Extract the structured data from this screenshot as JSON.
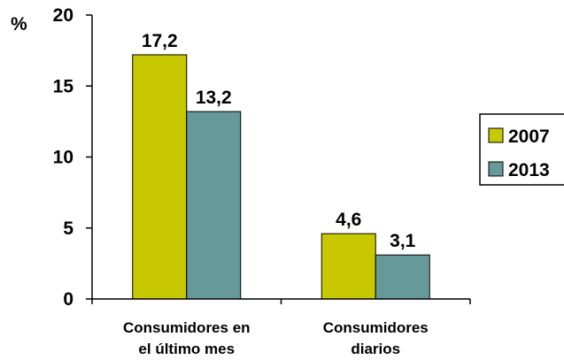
{
  "chart_data": {
    "type": "bar",
    "ylabel": "%",
    "ylim": [
      0,
      20
    ],
    "yticks": [
      0,
      5,
      10,
      15,
      20
    ],
    "categories": [
      [
        "Consumidores en",
        "el último mes"
      ],
      [
        "Consumidores",
        "diarios"
      ]
    ],
    "series": [
      {
        "name": "2007",
        "values": [
          17.2,
          4.6
        ],
        "labels": [
          "17,2",
          "4,6"
        ],
        "color": "#C8C800"
      },
      {
        "name": "2013",
        "values": [
          13.2,
          3.1
        ],
        "labels": [
          "13,2",
          "3,1"
        ],
        "color": "#669999"
      }
    ],
    "legend_position": "right",
    "grid": false
  }
}
